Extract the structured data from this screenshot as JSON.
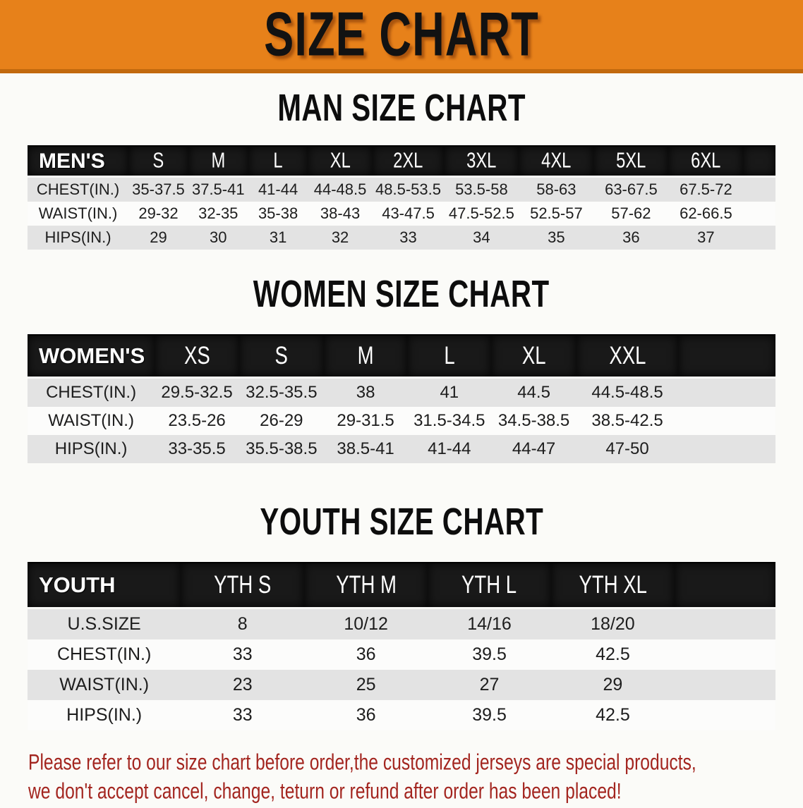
{
  "banner": {
    "title": "SIZE CHART"
  },
  "colors": {
    "banner_orange": "#E7811A",
    "banner_edge": "#C2690E",
    "header_black": "#191919",
    "row_gray": "#E3E3E3",
    "disclaimer_red": "#A3251F"
  },
  "sections": [
    {
      "heading": "MAN SIZE CHART",
      "table": {
        "label": "MEN'S",
        "columns": [
          "S",
          "M",
          "L",
          "XL",
          "2XL",
          "3XL",
          "4XL",
          "5XL",
          "6XL"
        ],
        "rows": [
          {
            "label": "CHEST(IN.)",
            "values": [
              "35-37.5",
              "37.5-41",
              "41-44",
              "44-48.5",
              "48.5-53.5",
              "53.5-58",
              "58-63",
              "63-67.5",
              "67.5-72"
            ]
          },
          {
            "label": "WAIST(IN.)",
            "values": [
              "29-32",
              "32-35",
              "35-38",
              "38-43",
              "43-47.5",
              "47.5-52.5",
              "52.5-57",
              "57-62",
              "62-66.5"
            ]
          },
          {
            "label": "HIPS(IN.)",
            "values": [
              "29",
              "30",
              "31",
              "32",
              "33",
              "34",
              "35",
              "36",
              "37"
            ]
          }
        ]
      }
    },
    {
      "heading": "WOMEN SIZE CHART",
      "table": {
        "label": "WOMEN'S",
        "columns": [
          "XS",
          "S",
          "M",
          "L",
          "XL",
          "XXL"
        ],
        "rows": [
          {
            "label": "CHEST(IN.)",
            "values": [
              "29.5-32.5",
              "32.5-35.5",
              "38",
              "41",
              "44.5",
              "44.5-48.5"
            ]
          },
          {
            "label": "WAIST(IN.)",
            "values": [
              "23.5-26",
              "26-29",
              "29-31.5",
              "31.5-34.5",
              "34.5-38.5",
              "38.5-42.5"
            ]
          },
          {
            "label": "HIPS(IN.)",
            "values": [
              "33-35.5",
              "35.5-38.5",
              "38.5-41",
              "41-44",
              "44-47",
              "47-50"
            ]
          }
        ]
      }
    },
    {
      "heading": "YOUTH SIZE CHART",
      "table": {
        "label": "YOUTH",
        "columns": [
          "YTH S",
          "YTH M",
          "YTH L",
          "YTH XL"
        ],
        "rows": [
          {
            "label": "U.S.SIZE",
            "values": [
              "8",
              "10/12",
              "14/16",
              "18/20"
            ]
          },
          {
            "label": "CHEST(IN.)",
            "values": [
              "33",
              "36",
              "39.5",
              "42.5"
            ]
          },
          {
            "label": "WAIST(IN.)",
            "values": [
              "23",
              "25",
              "27",
              "29"
            ]
          },
          {
            "label": "HIPS(IN.)",
            "values": [
              "33",
              "36",
              "39.5",
              "42.5"
            ]
          }
        ]
      }
    }
  ],
  "disclaimer": {
    "line1": "Please refer to our size chart before order,the customized jerseys are special products,",
    "line2": "we don't accept cancel, change, teturn or refund after order has been placed!"
  }
}
